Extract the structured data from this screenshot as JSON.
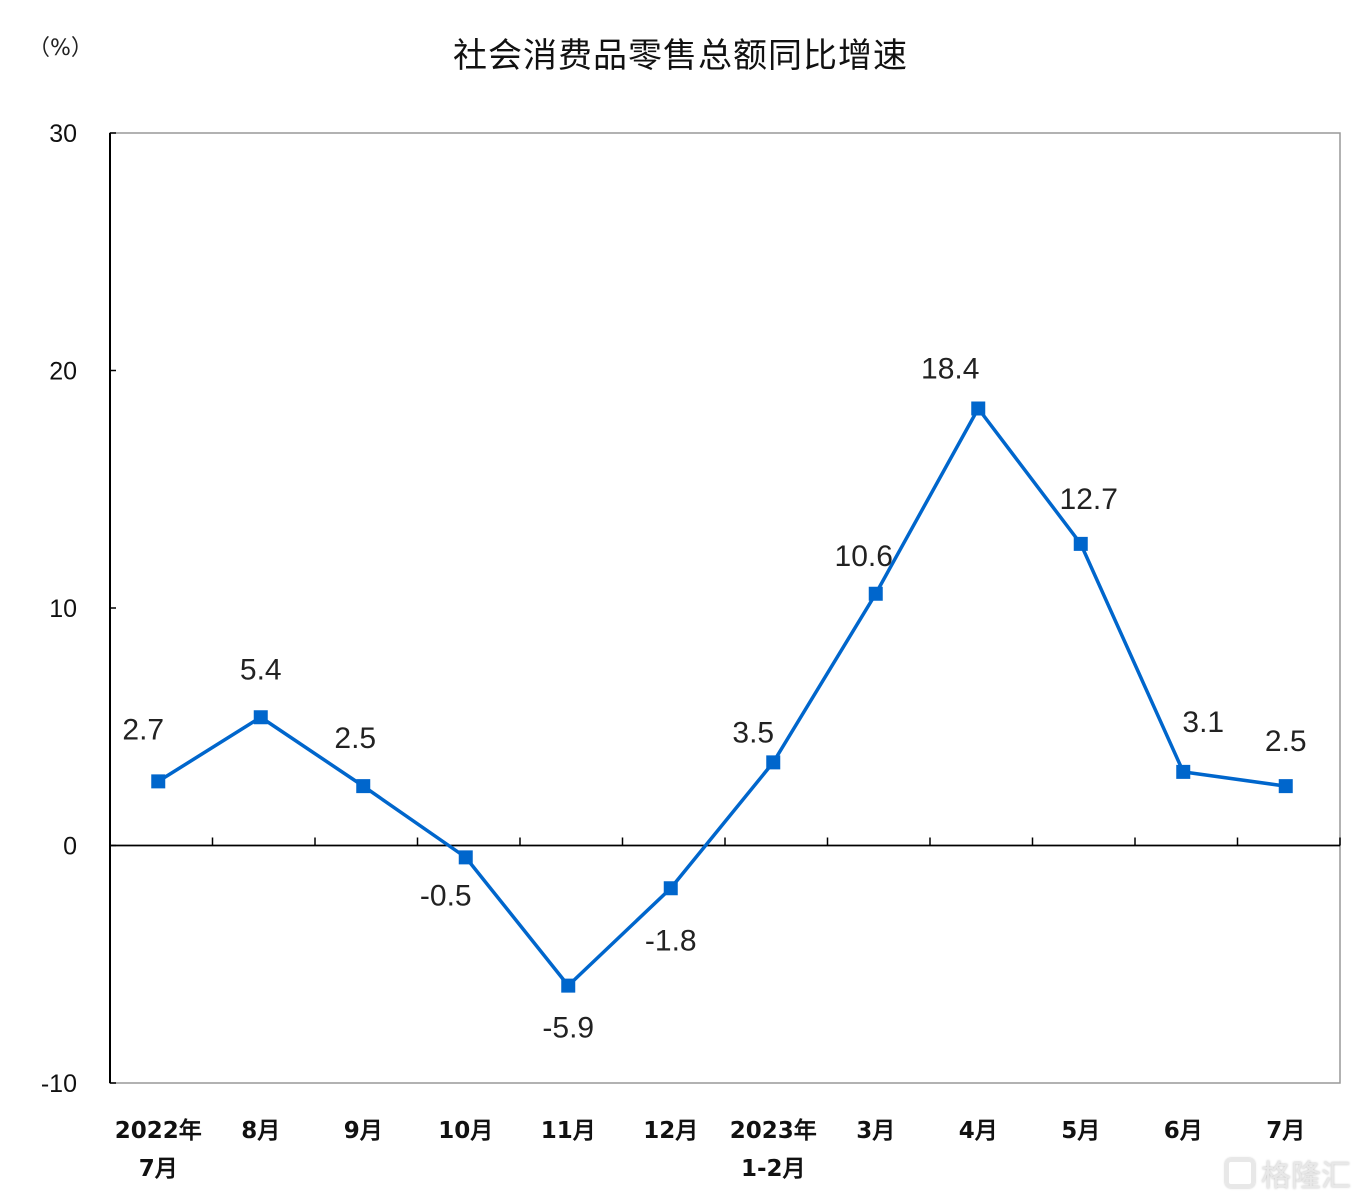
{
  "header": {
    "unit_label": "（%）",
    "title": "社会消费品零售总额同比增速"
  },
  "watermark": {
    "text": "格隆汇"
  },
  "colors": {
    "series": "#0066cc",
    "axis": "#000000"
  },
  "chart_data": {
    "type": "line",
    "title": "社会消费品零售总额同比增速",
    "xlabel": "",
    "ylabel": "(%)",
    "ylim": [
      -10,
      30
    ],
    "yticks": [
      30,
      20,
      10,
      0,
      -10
    ],
    "grid": false,
    "legend": null,
    "categories": [
      "2022年7月",
      "8月",
      "9月",
      "10月",
      "11月",
      "12月",
      "2023年1-2月",
      "3月",
      "4月",
      "5月",
      "6月",
      "7月"
    ],
    "category_lines": [
      [
        "2022年",
        "7月"
      ],
      [
        "8月"
      ],
      [
        "9月"
      ],
      [
        "10月"
      ],
      [
        "11月"
      ],
      [
        "12月"
      ],
      [
        "2023年",
        "1-2月"
      ],
      [
        "3月"
      ],
      [
        "4月"
      ],
      [
        "5月"
      ],
      [
        "6月"
      ],
      [
        "7月"
      ]
    ],
    "series": [
      {
        "name": "社会消费品零售总额同比增速",
        "marker": "square",
        "values": [
          2.7,
          5.4,
          2.5,
          -0.5,
          -5.9,
          -1.8,
          3.5,
          10.6,
          18.4,
          12.7,
          3.1,
          2.5
        ],
        "labels": [
          "2.7",
          "5.4",
          "2.5",
          "-0.5",
          "-5.9",
          "-1.8",
          "3.5",
          "10.6",
          "18.4",
          "12.7",
          "3.1",
          "2.5"
        ]
      }
    ]
  }
}
